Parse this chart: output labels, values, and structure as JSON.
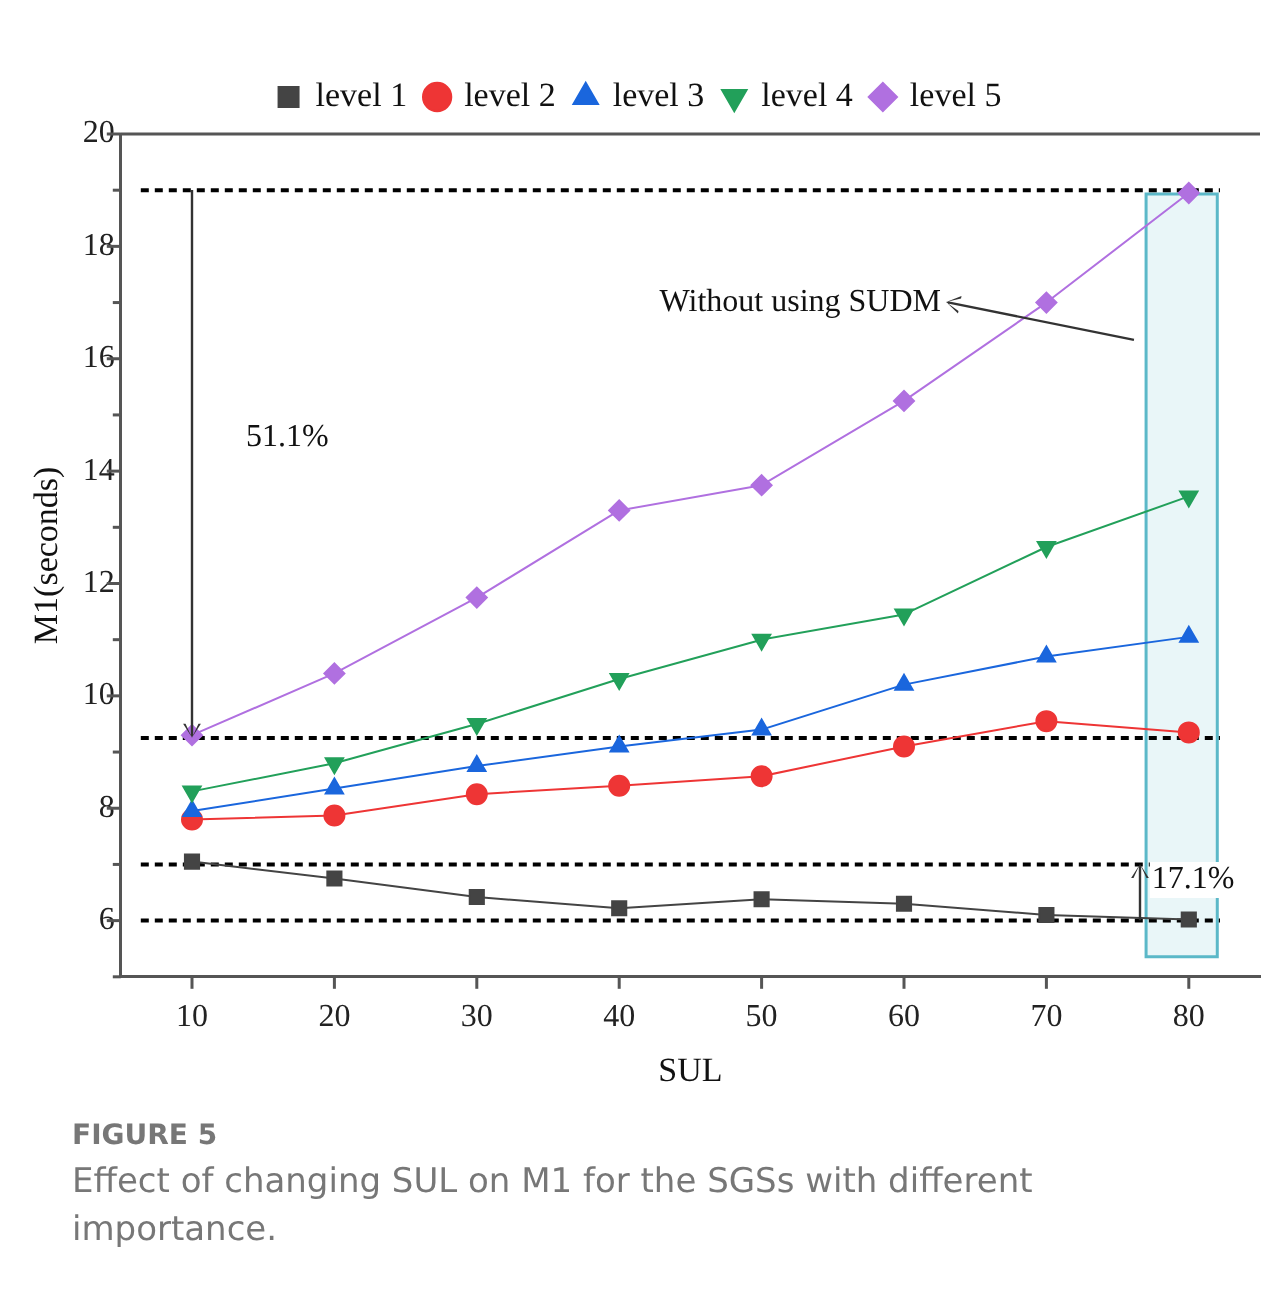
{
  "chart_data": {
    "type": "line",
    "xlabel": "SUL",
    "ylabel": "M1(seconds)",
    "x": [
      10,
      20,
      30,
      40,
      50,
      60,
      70,
      80
    ],
    "xlim": [
      5,
      85
    ],
    "xticks": [
      10,
      20,
      30,
      40,
      50,
      60,
      70,
      80
    ],
    "ylim": [
      5,
      20
    ],
    "yticks": [
      {
        "value": 5,
        "label": null
      },
      6,
      {
        "value": 7,
        "label": null
      },
      8,
      {
        "value": 9,
        "label": null
      },
      10,
      {
        "value": 11,
        "label": null
      },
      12,
      {
        "value": 13,
        "label": null
      },
      14,
      {
        "value": 15,
        "label": null
      },
      16,
      {
        "value": 17,
        "label": null
      },
      18,
      {
        "value": 19,
        "label": null
      },
      20
    ],
    "grid": false,
    "legend": "top",
    "series": [
      {
        "name": "level 1",
        "color": "#444444",
        "marker": "square",
        "values": [
          7.05,
          6.75,
          6.42,
          6.22,
          6.38,
          6.3,
          6.1,
          6.02
        ]
      },
      {
        "name": "level 2",
        "color": "#ee3535",
        "marker": "circle",
        "values": [
          7.8,
          7.87,
          8.25,
          8.4,
          8.57,
          9.1,
          9.55,
          9.35
        ]
      },
      {
        "name": "level 3",
        "color": "#1a66dd",
        "marker": "triangle",
        "values": [
          7.95,
          8.35,
          8.75,
          9.1,
          9.4,
          10.2,
          10.7,
          11.05
        ]
      },
      {
        "name": "level 4",
        "color": "#22a05a",
        "marker": "triangle-down",
        "values": [
          8.3,
          8.8,
          9.5,
          10.3,
          11.0,
          11.45,
          12.65,
          13.55
        ]
      },
      {
        "name": "level 5",
        "color": "#b070e0",
        "marker": "diamond",
        "values": [
          9.3,
          10.4,
          11.75,
          13.3,
          13.75,
          15.25,
          17.0,
          18.95
        ]
      }
    ],
    "ref_lines": [
      {
        "axis": "y",
        "value": 19,
        "line_style": "dashed",
        "color": "#000000"
      },
      {
        "axis": "y",
        "value": 9.25,
        "line_style": "dashed",
        "color": "#000000"
      },
      {
        "axis": "y",
        "value": 7,
        "line_style": "dashed",
        "color": "#000000"
      },
      {
        "axis": "y",
        "value": 6,
        "line_style": "dashed",
        "color": "#000000"
      }
    ],
    "bands": [
      {
        "axis": "x",
        "from": 77,
        "to": 82,
        "color": "#5bb8c8"
      }
    ],
    "annotations": [
      "51.1%",
      "17.1%",
      "Without using SUDM",
      "FIGURE 5",
      "Effect of changing SUL on M1 for the SGSs with different importance."
    ]
  }
}
